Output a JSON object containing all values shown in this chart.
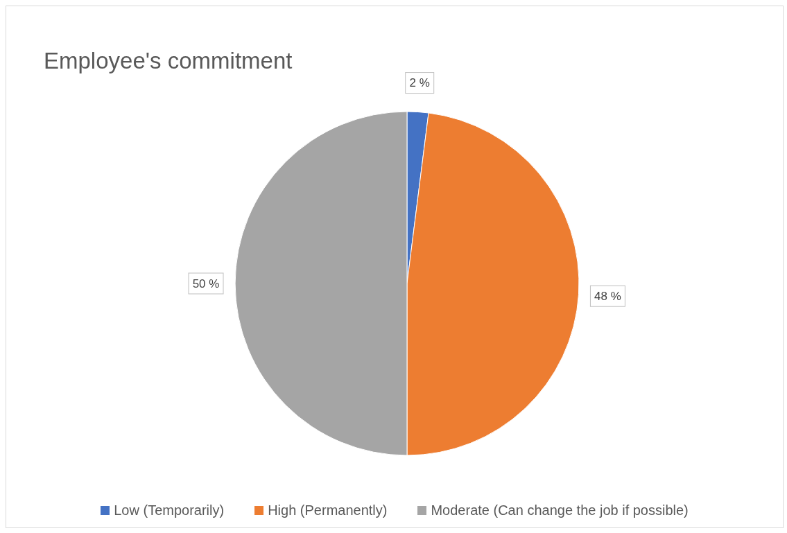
{
  "chart_data": {
    "type": "pie",
    "title": "Employee's commitment",
    "categories": [
      "Low (Temporarily)",
      "High (Permanently)",
      "Moderate (Can change the job if possible)"
    ],
    "values": [
      2,
      48,
      50
    ],
    "colors": [
      "#4472c4",
      "#ed7d31",
      "#a5a5a5"
    ],
    "value_labels": [
      "2 %",
      "48 %",
      "50 %"
    ],
    "legend": "bottom"
  }
}
